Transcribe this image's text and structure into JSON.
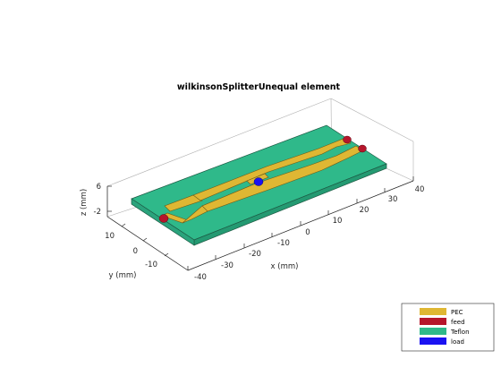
{
  "title": "wilkinsonSplitterUnequal element",
  "axes": {
    "x": {
      "label": "x (mm)",
      "ticks": [
        "-40",
        "-30",
        "-20",
        "-10",
        "0",
        "10",
        "20",
        "30",
        "40"
      ]
    },
    "y": {
      "label": "y (mm)",
      "ticks": [
        "-10",
        "0",
        "10"
      ]
    },
    "z": {
      "label": "z (mm)",
      "ticks": [
        "-2",
        "6"
      ]
    }
  },
  "legend": {
    "items": [
      {
        "label": "PEC",
        "color": "#dfb733"
      },
      {
        "label": "feed",
        "color": "#b6162b"
      },
      {
        "label": "Teflon",
        "color": "#2fb98a"
      },
      {
        "label": "load",
        "color": "#1a12f2"
      }
    ]
  },
  "colors": {
    "pec": "#dfb733",
    "feed": "#b6162b",
    "teflon": "#2fb98a",
    "teflon_side": "#249a72",
    "load": "#1a12f2"
  }
}
